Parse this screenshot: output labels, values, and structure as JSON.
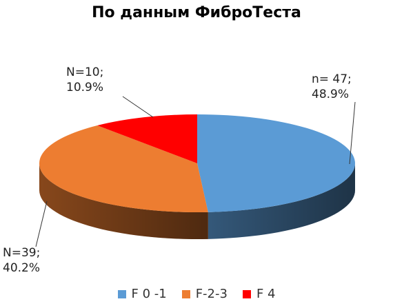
{
  "chart_data": {
    "type": "pie",
    "title": "По данным ФиброТеста",
    "categories": [
      "F 0 -1",
      "F-2-3",
      "F 4"
    ],
    "values": [
      48.9,
      40.2,
      10.9
    ],
    "counts": [
      47,
      39,
      10
    ],
    "colors": [
      "#5B9BD5",
      "#ED7D31",
      "#FF0000"
    ],
    "data_labels": [
      {
        "line1": "n= 47;",
        "line2": "48.9%"
      },
      {
        "line1": "N=39;",
        "line2": "40.2%"
      },
      {
        "line1": "N=10;",
        "line2": "10.9%"
      }
    ],
    "legend_position": "bottom"
  }
}
